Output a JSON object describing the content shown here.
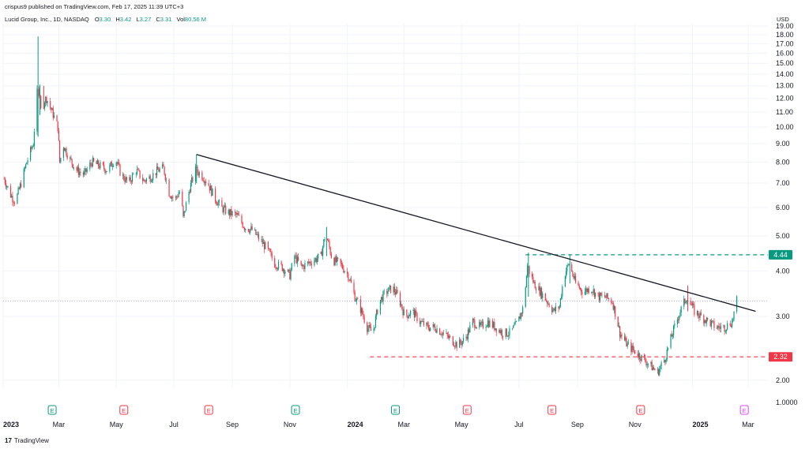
{
  "header": {
    "published_text": "crispus9 published on TradingView.com, Feb 17, 2025 11:39 UTC+3"
  },
  "legend": {
    "symbol": "Lucid Group, Inc., 1D, NASDAQ",
    "open_label": "O",
    "open_value": "3.30",
    "high_label": "H",
    "high_value": "3.42",
    "low_label": "L",
    "low_value": "3.27",
    "close_label": "C",
    "close_value": "3.31",
    "vol_label": "Vol",
    "vol_value": "80.56 M"
  },
  "currency": "USD",
  "footer": {
    "brand": "TradingView",
    "mark": "17"
  },
  "colors": {
    "up": "#089981",
    "down": "#f23645",
    "trend": "#131722",
    "grid": "#f0f3fa",
    "last_price": "#8c9eff",
    "earnings_past": "#089981",
    "earnings_future": "#e040fb"
  },
  "chart_data": {
    "type": "candlestick",
    "y_scale": "log",
    "ylim": [
      1.9,
      19.3
    ],
    "y_ticks": [
      "19.00",
      "18.00",
      "17.00",
      "16.00",
      "15.00",
      "14.00",
      "13.00",
      "12.00",
      "11.00",
      "10.00",
      "9.00",
      "8.00",
      "7.00",
      "6.00",
      "5.00",
      "4.00",
      "3.00",
      "2.00",
      "1.0000"
    ],
    "x_start": "2023-01-01",
    "x_end": "2025-03-22",
    "x_ticks": [
      {
        "date": "2023-01-01",
        "label": "2023",
        "bold": true
      },
      {
        "date": "2023-03-01",
        "label": "Mar",
        "bold": false
      },
      {
        "date": "2023-05-01",
        "label": "May",
        "bold": false
      },
      {
        "date": "2023-07-01",
        "label": "Jul",
        "bold": false
      },
      {
        "date": "2023-09-01",
        "label": "Sep",
        "bold": false
      },
      {
        "date": "2023-11-01",
        "label": "Nov",
        "bold": false
      },
      {
        "date": "2024-01-01",
        "label": "2024",
        "bold": true
      },
      {
        "date": "2024-03-01",
        "label": "Mar",
        "bold": false
      },
      {
        "date": "2024-05-01",
        "label": "May",
        "bold": false
      },
      {
        "date": "2024-07-01",
        "label": "Jul",
        "bold": false
      },
      {
        "date": "2024-09-01",
        "label": "Sep",
        "bold": false
      },
      {
        "date": "2024-11-01",
        "label": "Nov",
        "bold": false
      },
      {
        "date": "2025-01-01",
        "label": "2025",
        "bold": true
      },
      {
        "date": "2025-03-01",
        "label": "Mar",
        "bold": false
      }
    ],
    "price_path": [
      [
        "2023-01-02",
        7.2
      ],
      [
        "2023-01-09",
        6.5
      ],
      [
        "2023-01-14",
        6.2
      ],
      [
        "2023-01-20",
        7.0
      ],
      [
        "2023-01-26",
        8.0
      ],
      [
        "2023-02-02",
        9.0
      ],
      [
        "2023-02-06",
        12.4
      ],
      [
        "2023-02-10",
        11.6
      ],
      [
        "2023-02-16",
        12.0
      ],
      [
        "2023-02-22",
        11.0
      ],
      [
        "2023-02-28",
        10.0
      ],
      [
        "2023-03-02",
        8.0
      ],
      [
        "2023-03-06",
        8.9
      ],
      [
        "2023-03-12",
        8.2
      ],
      [
        "2023-03-20",
        7.6
      ],
      [
        "2023-03-28",
        7.4
      ],
      [
        "2023-04-05",
        8.0
      ],
      [
        "2023-04-14",
        7.8
      ],
      [
        "2023-04-22",
        7.6
      ],
      [
        "2023-04-30",
        8.2
      ],
      [
        "2023-05-06",
        7.4
      ],
      [
        "2023-05-14",
        7.0
      ],
      [
        "2023-05-22",
        7.6
      ],
      [
        "2023-05-30",
        7.1
      ],
      [
        "2023-06-07",
        7.3
      ],
      [
        "2023-06-14",
        7.6
      ],
      [
        "2023-06-20",
        7.7
      ],
      [
        "2023-06-26",
        6.6
      ],
      [
        "2023-07-02",
        6.3
      ],
      [
        "2023-07-08",
        6.7
      ],
      [
        "2023-07-11",
        5.6
      ],
      [
        "2023-07-18",
        6.8
      ],
      [
        "2023-07-24",
        7.6
      ],
      [
        "2023-07-30",
        7.4
      ],
      [
        "2023-08-06",
        7.0
      ],
      [
        "2023-08-13",
        6.4
      ],
      [
        "2023-08-20",
        6.0
      ],
      [
        "2023-08-28",
        5.8
      ],
      [
        "2023-09-06",
        5.7
      ],
      [
        "2023-09-14",
        5.3
      ],
      [
        "2023-09-22",
        5.2
      ],
      [
        "2023-09-30",
        4.9
      ],
      [
        "2023-10-08",
        4.6
      ],
      [
        "2023-10-16",
        4.2
      ],
      [
        "2023-10-24",
        4.1
      ],
      [
        "2023-11-01",
        3.9
      ],
      [
        "2023-11-06",
        4.4
      ],
      [
        "2023-11-13",
        4.1
      ],
      [
        "2023-11-20",
        4.2
      ],
      [
        "2023-11-27",
        4.3
      ],
      [
        "2023-12-04",
        4.4
      ],
      [
        "2023-12-09",
        5.1
      ],
      [
        "2023-12-16",
        4.3
      ],
      [
        "2023-12-24",
        4.2
      ],
      [
        "2024-01-02",
        3.9
      ],
      [
        "2024-01-09",
        3.4
      ],
      [
        "2024-01-16",
        3.1
      ],
      [
        "2024-01-22",
        2.8
      ],
      [
        "2024-01-28",
        2.7
      ],
      [
        "2024-02-04",
        3.3
      ],
      [
        "2024-02-11",
        3.5
      ],
      [
        "2024-02-18",
        3.6
      ],
      [
        "2024-02-24",
        3.4
      ],
      [
        "2024-03-02",
        3.0
      ],
      [
        "2024-03-10",
        3.1
      ],
      [
        "2024-03-18",
        2.9
      ],
      [
        "2024-03-26",
        2.8
      ],
      [
        "2024-04-03",
        2.8
      ],
      [
        "2024-04-11",
        2.7
      ],
      [
        "2024-04-19",
        2.6
      ],
      [
        "2024-04-27",
        2.5
      ],
      [
        "2024-05-05",
        2.6
      ],
      [
        "2024-05-13",
        2.9
      ],
      [
        "2024-05-21",
        2.8
      ],
      [
        "2024-05-29",
        2.9
      ],
      [
        "2024-06-06",
        2.8
      ],
      [
        "2024-06-14",
        2.7
      ],
      [
        "2024-06-22",
        2.7
      ],
      [
        "2024-06-30",
        2.9
      ],
      [
        "2024-07-06",
        3.2
      ],
      [
        "2024-07-10",
        4.1
      ],
      [
        "2024-07-17",
        3.7
      ],
      [
        "2024-07-24",
        3.5
      ],
      [
        "2024-07-31",
        3.3
      ],
      [
        "2024-08-07",
        3.1
      ],
      [
        "2024-08-13",
        3.2
      ],
      [
        "2024-08-18",
        3.9
      ],
      [
        "2024-08-23",
        4.2
      ],
      [
        "2024-08-30",
        3.7
      ],
      [
        "2024-09-07",
        3.5
      ],
      [
        "2024-09-15",
        3.6
      ],
      [
        "2024-09-23",
        3.4
      ],
      [
        "2024-09-30",
        3.4
      ],
      [
        "2024-10-08",
        3.3
      ],
      [
        "2024-10-16",
        2.7
      ],
      [
        "2024-10-24",
        2.5
      ],
      [
        "2024-11-01",
        2.4
      ],
      [
        "2024-11-09",
        2.3
      ],
      [
        "2024-11-17",
        2.2
      ],
      [
        "2024-11-25",
        2.1
      ],
      [
        "2024-12-03",
        2.3
      ],
      [
        "2024-12-11",
        2.7
      ],
      [
        "2024-12-19",
        3.1
      ],
      [
        "2024-12-26",
        3.4
      ],
      [
        "2025-01-03",
        3.1
      ],
      [
        "2025-01-10",
        3.0
      ],
      [
        "2025-01-18",
        2.9
      ],
      [
        "2025-01-26",
        2.8
      ],
      [
        "2025-02-04",
        2.8
      ],
      [
        "2025-02-12",
        2.9
      ],
      [
        "2025-02-17",
        3.31
      ]
    ],
    "spikes": [
      {
        "date": "2023-02-07",
        "high": 17.8,
        "low": 9.4,
        "color": "up"
      },
      {
        "date": "2023-02-09",
        "high": 13.1,
        "low": 10.8,
        "color": "up"
      },
      {
        "date": "2023-02-13",
        "high": 13.0,
        "low": 11.2,
        "color": "down"
      },
      {
        "date": "2023-07-25",
        "high": 8.4,
        "low": 7.0,
        "color": "up"
      },
      {
        "date": "2023-12-10",
        "high": 5.3,
        "low": 4.4,
        "color": "up"
      },
      {
        "date": "2024-07-11",
        "high": 4.5,
        "low": 3.4,
        "color": "up"
      },
      {
        "date": "2024-08-24",
        "high": 4.45,
        "low": 3.7,
        "color": "up"
      },
      {
        "date": "2024-12-27",
        "high": 3.65,
        "low": 3.1,
        "color": "down"
      }
    ],
    "trendline": {
      "start": [
        "2023-07-25",
        8.4
      ],
      "end": [
        "2025-03-09",
        3.1
      ]
    },
    "levels": [
      {
        "price": 4.44,
        "label": "4.44",
        "color": "up",
        "start": "2024-07-08"
      },
      {
        "price": 2.32,
        "label": "2.32",
        "color": "down",
        "start": "2024-01-25"
      }
    ],
    "last_price_line": 3.31,
    "earnings": [
      {
        "date": "2023-02-22",
        "label": "E",
        "state": "past-up"
      },
      {
        "date": "2023-05-09",
        "label": "E",
        "state": "past-down"
      },
      {
        "date": "2023-08-07",
        "label": "E",
        "state": "past-down"
      },
      {
        "date": "2023-11-07",
        "label": "E",
        "state": "past-up"
      },
      {
        "date": "2024-02-21",
        "label": "E",
        "state": "past-up"
      },
      {
        "date": "2024-05-07",
        "label": "E",
        "state": "past-down"
      },
      {
        "date": "2024-08-05",
        "label": "E",
        "state": "past-down"
      },
      {
        "date": "2024-11-07",
        "label": "E",
        "state": "past-down"
      },
      {
        "date": "2025-02-25",
        "label": "E",
        "state": "future"
      }
    ]
  }
}
